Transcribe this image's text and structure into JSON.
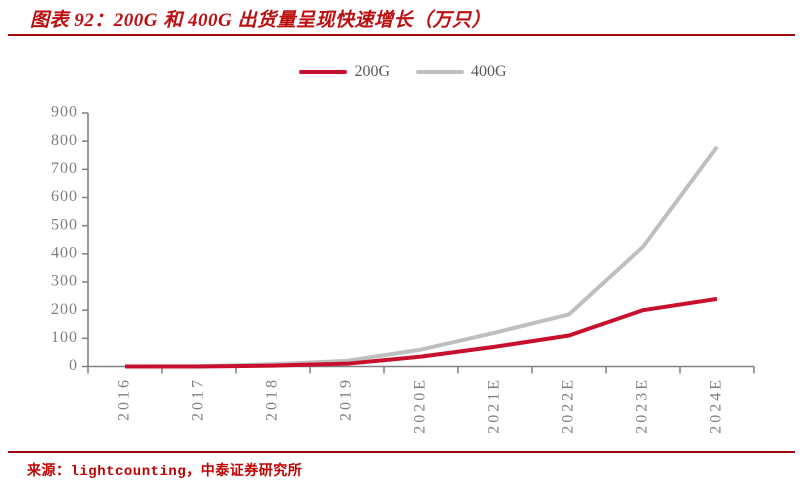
{
  "header": {
    "title": "图表 92：200G 和 400G 出货量呈现快速增长（万只）"
  },
  "footer": {
    "source": "来源：lightcounting，中泰证券研究所"
  },
  "colors": {
    "title_red": "#bd0e10",
    "rule_red": "#9e0b0f",
    "source_red": "#c00000",
    "axis_gray": "#808080",
    "tick_label_gray": "#7f7f7f",
    "legend_text_gray": "#595959",
    "series_200g": "#c8102e",
    "series_400g": "#bfbfbf"
  },
  "chart_data": {
    "type": "line",
    "title": "图表 92：200G 和 400G 出货量呈现快速增长（万只）",
    "categories": [
      "2016",
      "2017",
      "2018",
      "2019",
      "2020E",
      "2021E",
      "2022E",
      "2023E",
      "2024E"
    ],
    "series": [
      {
        "name": "200G",
        "color": "#c8102e",
        "values": [
          0,
          0,
          3,
          10,
          35,
          70,
          110,
          200,
          240
        ]
      },
      {
        "name": "400G",
        "color": "#bfbfbf",
        "values": [
          0,
          1,
          8,
          20,
          60,
          120,
          185,
          425,
          780
        ]
      }
    ],
    "xlabel": "",
    "ylabel": "",
    "unit": "万只",
    "ylim": [
      0,
      900
    ],
    "ytick_step": 100,
    "grid": false,
    "legend_position": "top-center",
    "x_tick_label_rotation": -90
  }
}
